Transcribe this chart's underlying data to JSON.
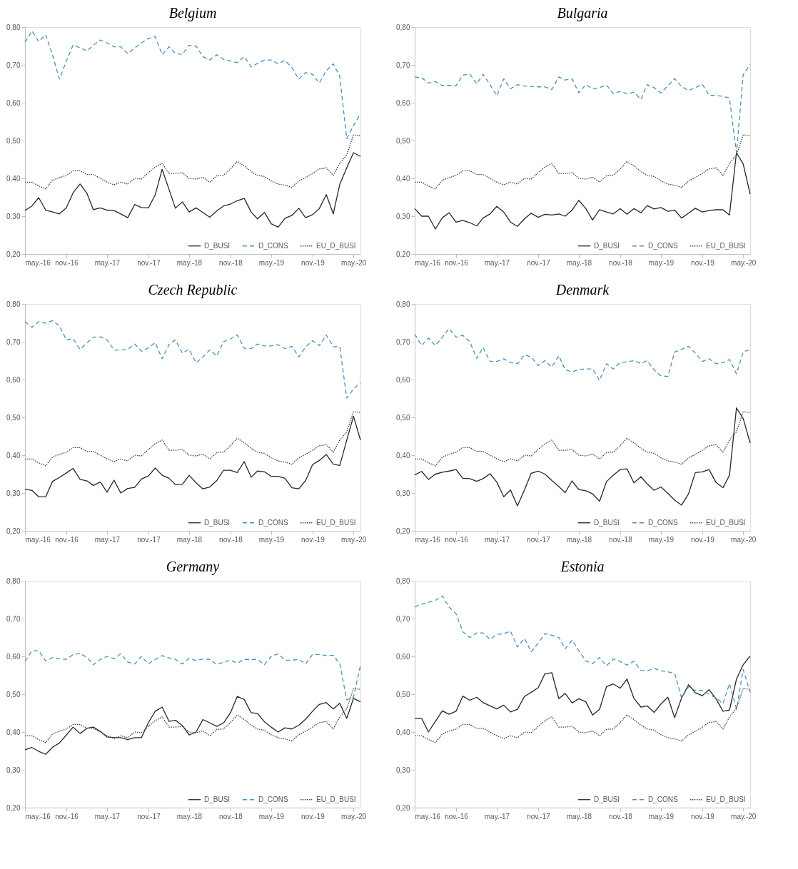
{
  "chart_data": [
    {
      "type": "line",
      "title": "Belgium",
      "x": [
        "2016-05",
        "2016-06",
        "2016-07",
        "2016-08",
        "2016-09",
        "2016-10",
        "2016-11",
        "2016-12",
        "2017-01",
        "2017-02",
        "2017-03",
        "2017-04",
        "2017-05",
        "2017-06",
        "2017-07",
        "2017-08",
        "2017-09",
        "2017-10",
        "2017-11",
        "2017-12",
        "2018-01",
        "2018-02",
        "2018-03",
        "2018-04",
        "2018-05",
        "2018-06",
        "2018-07",
        "2018-08",
        "2018-09",
        "2018-10",
        "2018-11",
        "2018-12",
        "2019-01",
        "2019-02",
        "2019-03",
        "2019-04",
        "2019-05",
        "2019-06",
        "2019-07",
        "2019-08",
        "2019-09",
        "2019-10",
        "2019-11",
        "2019-12",
        "2020-01",
        "2020-02",
        "2020-03",
        "2020-04",
        "2020-05",
        "2020-06"
      ],
      "xlim": [
        "2016-05",
        "2020-06"
      ],
      "xticks": [
        {
          "value": "2016-05",
          "label": "may.-16"
        },
        {
          "value": "2016-11",
          "label": "nov.-16"
        },
        {
          "value": "2017-05",
          "label": "may.-17"
        },
        {
          "value": "2017-11",
          "label": "nov.-17"
        },
        {
          "value": "2018-05",
          "label": "may.-18"
        },
        {
          "value": "2018-11",
          "label": "nov.-18"
        },
        {
          "value": "2019-05",
          "label": "may.-19"
        },
        {
          "value": "2019-11",
          "label": "nov.-19"
        },
        {
          "value": "2020-05",
          "label": "may.-20"
        }
      ],
      "ylim": [
        0.2,
        0.8
      ],
      "yticks": [
        {
          "value": 0.2,
          "label": "0,20"
        },
        {
          "value": 0.3,
          "label": "0,30"
        },
        {
          "value": 0.4,
          "label": "0,40"
        },
        {
          "value": 0.5,
          "label": "0,50"
        },
        {
          "value": 0.6,
          "label": "0,60"
        },
        {
          "value": 0.7,
          "label": "0,70"
        },
        {
          "value": 0.8,
          "label": "0,80"
        }
      ],
      "legend": "bottom right",
      "grid": false,
      "series": [
        {
          "name": "D_BUSI",
          "color": "#262626",
          "line_style": "solid",
          "values": [
            0.315,
            0.327,
            0.349,
            0.316,
            0.311,
            0.306,
            0.322,
            0.362,
            0.385,
            0.36,
            0.317,
            0.322,
            0.316,
            0.315,
            0.306,
            0.296,
            0.331,
            0.323,
            0.322,
            0.356,
            0.424,
            0.37,
            0.321,
            0.338,
            0.311,
            0.322,
            0.31,
            0.297,
            0.314,
            0.327,
            0.332,
            0.341,
            0.347,
            0.311,
            0.293,
            0.31,
            0.28,
            0.271,
            0.294,
            0.302,
            0.321,
            0.296,
            0.304,
            0.32,
            0.357,
            0.306,
            0.384,
            0.428,
            0.468,
            0.458
          ]
        },
        {
          "name": "D_CONS",
          "color": "#4a90bf",
          "line_style": "dashed",
          "values": [
            0.76,
            0.79,
            0.762,
            0.78,
            0.725,
            0.663,
            0.71,
            0.753,
            0.745,
            0.737,
            0.752,
            0.766,
            0.758,
            0.748,
            0.748,
            0.73,
            0.745,
            0.758,
            0.77,
            0.775,
            0.727,
            0.748,
            0.73,
            0.728,
            0.752,
            0.75,
            0.722,
            0.713,
            0.727,
            0.715,
            0.71,
            0.706,
            0.722,
            0.695,
            0.704,
            0.713,
            0.713,
            0.703,
            0.712,
            0.693,
            0.662,
            0.68,
            0.675,
            0.652,
            0.685,
            0.703,
            0.67,
            0.505,
            0.54,
            0.57
          ]
        },
        {
          "name": "EU_D_BUSI",
          "color": "#404040",
          "line_style": "dotted",
          "values": [
            0.39,
            0.39,
            0.38,
            0.372,
            0.395,
            0.402,
            0.408,
            0.42,
            0.42,
            0.41,
            0.41,
            0.4,
            0.39,
            0.383,
            0.39,
            0.385,
            0.4,
            0.398,
            0.415,
            0.43,
            0.44,
            0.413,
            0.413,
            0.415,
            0.4,
            0.398,
            0.403,
            0.39,
            0.407,
            0.408,
            0.425,
            0.445,
            0.433,
            0.418,
            0.408,
            0.405,
            0.393,
            0.385,
            0.382,
            0.376,
            0.393,
            0.402,
            0.413,
            0.425,
            0.428,
            0.408,
            0.44,
            0.462,
            0.515,
            0.513
          ]
        }
      ]
    },
    {
      "type": "line",
      "title": "Bulgaria",
      "x": [
        "2016-05",
        "2016-06",
        "2016-07",
        "2016-08",
        "2016-09",
        "2016-10",
        "2016-11",
        "2016-12",
        "2017-01",
        "2017-02",
        "2017-03",
        "2017-04",
        "2017-05",
        "2017-06",
        "2017-07",
        "2017-08",
        "2017-09",
        "2017-10",
        "2017-11",
        "2017-12",
        "2018-01",
        "2018-02",
        "2018-03",
        "2018-04",
        "2018-05",
        "2018-06",
        "2018-07",
        "2018-08",
        "2018-09",
        "2018-10",
        "2018-11",
        "2018-12",
        "2019-01",
        "2019-02",
        "2019-03",
        "2019-04",
        "2019-05",
        "2019-06",
        "2019-07",
        "2019-08",
        "2019-09",
        "2019-10",
        "2019-11",
        "2019-12",
        "2020-01",
        "2020-02",
        "2020-03",
        "2020-04",
        "2020-05",
        "2020-06"
      ],
      "xlim": [
        "2016-05",
        "2020-06"
      ],
      "xticks": [
        {
          "value": "2016-05",
          "label": "may.-16"
        },
        {
          "value": "2016-11",
          "label": "nov.-16"
        },
        {
          "value": "2017-05",
          "label": "may.-17"
        },
        {
          "value": "2017-11",
          "label": "nov.-17"
        },
        {
          "value": "2018-05",
          "label": "may.-18"
        },
        {
          "value": "2018-11",
          "label": "nov.-18"
        },
        {
          "value": "2019-05",
          "label": "may.-19"
        },
        {
          "value": "2019-11",
          "label": "nov.-19"
        },
        {
          "value": "2020-05",
          "label": "may.-20"
        }
      ],
      "ylim": [
        0.2,
        0.8
      ],
      "yticks": [
        {
          "value": 0.2,
          "label": "0,20"
        },
        {
          "value": 0.3,
          "label": "0,30"
        },
        {
          "value": 0.4,
          "label": "0,40"
        },
        {
          "value": 0.5,
          "label": "0,50"
        },
        {
          "value": 0.6,
          "label": "0,60"
        },
        {
          "value": 0.7,
          "label": "0,70"
        },
        {
          "value": 0.8,
          "label": "0,80"
        }
      ],
      "legend": "bottom right",
      "grid": false,
      "series": [
        {
          "name": "D_BUSI",
          "color": "#262626",
          "line_style": "solid",
          "values": [
            0.32,
            0.3,
            0.3,
            0.266,
            0.296,
            0.309,
            0.284,
            0.289,
            0.283,
            0.274,
            0.295,
            0.306,
            0.326,
            0.311,
            0.284,
            0.273,
            0.293,
            0.308,
            0.297,
            0.305,
            0.303,
            0.306,
            0.3,
            0.316,
            0.342,
            0.32,
            0.29,
            0.317,
            0.311,
            0.306,
            0.32,
            0.305,
            0.32,
            0.309,
            0.328,
            0.319,
            0.323,
            0.313,
            0.316,
            0.295,
            0.308,
            0.321,
            0.311,
            0.315,
            0.317,
            0.317,
            0.303,
            0.468,
            0.438,
            0.358
          ]
        },
        {
          "name": "D_CONS",
          "color": "#4a90bf",
          "line_style": "dashed",
          "values": [
            0.668,
            0.666,
            0.652,
            0.656,
            0.645,
            0.646,
            0.645,
            0.673,
            0.676,
            0.65,
            0.675,
            0.648,
            0.618,
            0.663,
            0.637,
            0.648,
            0.644,
            0.643,
            0.642,
            0.642,
            0.635,
            0.668,
            0.66,
            0.663,
            0.626,
            0.648,
            0.637,
            0.64,
            0.647,
            0.624,
            0.63,
            0.624,
            0.628,
            0.609,
            0.648,
            0.64,
            0.626,
            0.645,
            0.664,
            0.643,
            0.632,
            0.64,
            0.649,
            0.62,
            0.619,
            0.617,
            0.612,
            0.468,
            0.674,
            0.701
          ]
        },
        {
          "name": "EU_D_BUSI",
          "color": "#404040",
          "line_style": "dotted",
          "values": [
            0.39,
            0.39,
            0.38,
            0.372,
            0.395,
            0.402,
            0.408,
            0.42,
            0.42,
            0.41,
            0.41,
            0.4,
            0.39,
            0.383,
            0.39,
            0.385,
            0.4,
            0.398,
            0.415,
            0.43,
            0.44,
            0.413,
            0.413,
            0.415,
            0.4,
            0.398,
            0.403,
            0.39,
            0.407,
            0.408,
            0.425,
            0.445,
            0.433,
            0.418,
            0.408,
            0.405,
            0.393,
            0.385,
            0.382,
            0.376,
            0.393,
            0.402,
            0.413,
            0.425,
            0.428,
            0.408,
            0.44,
            0.462,
            0.515,
            0.513
          ]
        }
      ]
    },
    {
      "type": "line",
      "title": "Czech Republic",
      "x": [
        "2016-05",
        "2016-06",
        "2016-07",
        "2016-08",
        "2016-09",
        "2016-10",
        "2016-11",
        "2016-12",
        "2017-01",
        "2017-02",
        "2017-03",
        "2017-04",
        "2017-05",
        "2017-06",
        "2017-07",
        "2017-08",
        "2017-09",
        "2017-10",
        "2017-11",
        "2017-12",
        "2018-01",
        "2018-02",
        "2018-03",
        "2018-04",
        "2018-05",
        "2018-06",
        "2018-07",
        "2018-08",
        "2018-09",
        "2018-10",
        "2018-11",
        "2018-12",
        "2019-01",
        "2019-02",
        "2019-03",
        "2019-04",
        "2019-05",
        "2019-06",
        "2019-07",
        "2019-08",
        "2019-09",
        "2019-10",
        "2019-11",
        "2019-12",
        "2020-01",
        "2020-02",
        "2020-03",
        "2020-04",
        "2020-05",
        "2020-06"
      ],
      "xlim": [
        "2016-05",
        "2020-06"
      ],
      "xticks": [
        {
          "value": "2016-05",
          "label": "may.-16"
        },
        {
          "value": "2016-11",
          "label": "nov.-16"
        },
        {
          "value": "2017-05",
          "label": "may.-17"
        },
        {
          "value": "2017-11",
          "label": "nov.-17"
        },
        {
          "value": "2018-05",
          "label": "may.-18"
        },
        {
          "value": "2018-11",
          "label": "nov.-18"
        },
        {
          "value": "2019-05",
          "label": "may.-19"
        },
        {
          "value": "2019-11",
          "label": "nov.-19"
        },
        {
          "value": "2020-05",
          "label": "may.-20"
        }
      ],
      "ylim": [
        0.2,
        0.8
      ],
      "yticks": [
        {
          "value": 0.2,
          "label": "0,20"
        },
        {
          "value": 0.3,
          "label": "0,30"
        },
        {
          "value": 0.4,
          "label": "0,40"
        },
        {
          "value": 0.5,
          "label": "0,50"
        },
        {
          "value": 0.6,
          "label": "0,60"
        },
        {
          "value": 0.7,
          "label": "0,70"
        },
        {
          "value": 0.8,
          "label": "0,80"
        }
      ],
      "legend": "bottom right",
      "grid": false,
      "series": [
        {
          "name": "D_BUSI",
          "color": "#262626",
          "line_style": "solid",
          "values": [
            0.31,
            0.307,
            0.29,
            0.29,
            0.331,
            0.341,
            0.353,
            0.365,
            0.336,
            0.332,
            0.32,
            0.329,
            0.302,
            0.334,
            0.3,
            0.312,
            0.315,
            0.337,
            0.345,
            0.366,
            0.347,
            0.339,
            0.322,
            0.323,
            0.347,
            0.327,
            0.311,
            0.316,
            0.333,
            0.36,
            0.36,
            0.354,
            0.383,
            0.342,
            0.358,
            0.356,
            0.344,
            0.344,
            0.339,
            0.314,
            0.311,
            0.333,
            0.375,
            0.386,
            0.402,
            0.376,
            0.373,
            0.44,
            0.503,
            0.44
          ]
        },
        {
          "name": "D_CONS",
          "color": "#4a90bf",
          "line_style": "dashed",
          "values": [
            0.753,
            0.738,
            0.753,
            0.749,
            0.756,
            0.742,
            0.705,
            0.708,
            0.68,
            0.697,
            0.712,
            0.713,
            0.705,
            0.678,
            0.678,
            0.68,
            0.694,
            0.675,
            0.684,
            0.698,
            0.655,
            0.693,
            0.705,
            0.67,
            0.68,
            0.644,
            0.66,
            0.678,
            0.662,
            0.7,
            0.708,
            0.718,
            0.683,
            0.682,
            0.694,
            0.689,
            0.689,
            0.692,
            0.682,
            0.688,
            0.66,
            0.686,
            0.703,
            0.69,
            0.718,
            0.687,
            0.687,
            0.551,
            0.575,
            0.592
          ]
        },
        {
          "name": "EU_D_BUSI",
          "color": "#404040",
          "line_style": "dotted",
          "values": [
            0.39,
            0.39,
            0.38,
            0.372,
            0.395,
            0.402,
            0.408,
            0.42,
            0.42,
            0.41,
            0.41,
            0.4,
            0.39,
            0.383,
            0.39,
            0.385,
            0.4,
            0.398,
            0.415,
            0.43,
            0.44,
            0.413,
            0.413,
            0.415,
            0.4,
            0.398,
            0.403,
            0.39,
            0.407,
            0.408,
            0.425,
            0.445,
            0.433,
            0.418,
            0.408,
            0.405,
            0.393,
            0.385,
            0.382,
            0.376,
            0.393,
            0.402,
            0.413,
            0.425,
            0.428,
            0.408,
            0.44,
            0.462,
            0.515,
            0.513
          ]
        }
      ]
    },
    {
      "type": "line",
      "title": "Denmark",
      "x": [
        "2016-05",
        "2016-06",
        "2016-07",
        "2016-08",
        "2016-09",
        "2016-10",
        "2016-11",
        "2016-12",
        "2017-01",
        "2017-02",
        "2017-03",
        "2017-04",
        "2017-05",
        "2017-06",
        "2017-07",
        "2017-08",
        "2017-09",
        "2017-10",
        "2017-11",
        "2017-12",
        "2018-01",
        "2018-02",
        "2018-03",
        "2018-04",
        "2018-05",
        "2018-06",
        "2018-07",
        "2018-08",
        "2018-09",
        "2018-10",
        "2018-11",
        "2018-12",
        "2019-01",
        "2019-02",
        "2019-03",
        "2019-04",
        "2019-05",
        "2019-06",
        "2019-07",
        "2019-08",
        "2019-09",
        "2019-10",
        "2019-11",
        "2019-12",
        "2020-01",
        "2020-02",
        "2020-03",
        "2020-04",
        "2020-05",
        "2020-06"
      ],
      "xlim": [
        "2016-05",
        "2020-06"
      ],
      "xticks": [
        {
          "value": "2016-05",
          "label": "may.-16"
        },
        {
          "value": "2016-11",
          "label": "nov.-16"
        },
        {
          "value": "2017-05",
          "label": "may.-17"
        },
        {
          "value": "2017-11",
          "label": "nov.-17"
        },
        {
          "value": "2018-05",
          "label": "may.-18"
        },
        {
          "value": "2018-11",
          "label": "nov.-18"
        },
        {
          "value": "2019-05",
          "label": "may.-19"
        },
        {
          "value": "2019-11",
          "label": "nov.-19"
        },
        {
          "value": "2020-05",
          "label": "may.-20"
        }
      ],
      "ylim": [
        0.2,
        0.8
      ],
      "yticks": [
        {
          "value": 0.2,
          "label": "0,20"
        },
        {
          "value": 0.3,
          "label": "0,30"
        },
        {
          "value": 0.4,
          "label": "0,40"
        },
        {
          "value": 0.5,
          "label": "0,50"
        },
        {
          "value": 0.6,
          "label": "0,60"
        },
        {
          "value": 0.7,
          "label": "0,70"
        },
        {
          "value": 0.8,
          "label": "0,80"
        }
      ],
      "legend": "bottom right",
      "grid": false,
      "series": [
        {
          "name": "D_BUSI",
          "color": "#262626",
          "line_style": "solid",
          "values": [
            0.348,
            0.357,
            0.336,
            0.35,
            0.355,
            0.358,
            0.362,
            0.339,
            0.338,
            0.331,
            0.338,
            0.351,
            0.329,
            0.29,
            0.308,
            0.266,
            0.308,
            0.352,
            0.358,
            0.35,
            0.333,
            0.317,
            0.301,
            0.332,
            0.309,
            0.306,
            0.298,
            0.278,
            0.33,
            0.347,
            0.362,
            0.364,
            0.327,
            0.343,
            0.324,
            0.307,
            0.316,
            0.299,
            0.281,
            0.268,
            0.298,
            0.354,
            0.356,
            0.362,
            0.328,
            0.314,
            0.347,
            0.525,
            0.497,
            0.432
          ]
        },
        {
          "name": "D_CONS",
          "color": "#4a90bf",
          "line_style": "dashed",
          "values": [
            0.72,
            0.69,
            0.71,
            0.69,
            0.712,
            0.735,
            0.712,
            0.717,
            0.7,
            0.656,
            0.685,
            0.648,
            0.648,
            0.655,
            0.645,
            0.642,
            0.665,
            0.66,
            0.637,
            0.65,
            0.633,
            0.663,
            0.626,
            0.62,
            0.627,
            0.628,
            0.628,
            0.598,
            0.642,
            0.628,
            0.645,
            0.647,
            0.65,
            0.643,
            0.65,
            0.625,
            0.61,
            0.608,
            0.673,
            0.68,
            0.688,
            0.67,
            0.648,
            0.655,
            0.642,
            0.645,
            0.653,
            0.615,
            0.673,
            0.68
          ]
        },
        {
          "name": "EU_D_BUSI",
          "color": "#404040",
          "line_style": "dotted",
          "values": [
            0.39,
            0.39,
            0.38,
            0.372,
            0.395,
            0.402,
            0.408,
            0.42,
            0.42,
            0.41,
            0.41,
            0.4,
            0.39,
            0.383,
            0.39,
            0.385,
            0.4,
            0.398,
            0.415,
            0.43,
            0.44,
            0.413,
            0.413,
            0.415,
            0.4,
            0.398,
            0.403,
            0.39,
            0.407,
            0.408,
            0.425,
            0.445,
            0.433,
            0.418,
            0.408,
            0.405,
            0.393,
            0.385,
            0.382,
            0.376,
            0.393,
            0.402,
            0.413,
            0.425,
            0.428,
            0.408,
            0.44,
            0.462,
            0.515,
            0.513
          ]
        }
      ]
    },
    {
      "type": "line",
      "title": "Germany",
      "x": [
        "2016-05",
        "2016-06",
        "2016-07",
        "2016-08",
        "2016-09",
        "2016-10",
        "2016-11",
        "2016-12",
        "2017-01",
        "2017-02",
        "2017-03",
        "2017-04",
        "2017-05",
        "2017-06",
        "2017-07",
        "2017-08",
        "2017-09",
        "2017-10",
        "2017-11",
        "2017-12",
        "2018-01",
        "2018-02",
        "2018-03",
        "2018-04",
        "2018-05",
        "2018-06",
        "2018-07",
        "2018-08",
        "2018-09",
        "2018-10",
        "2018-11",
        "2018-12",
        "2019-01",
        "2019-02",
        "2019-03",
        "2019-04",
        "2019-05",
        "2019-06",
        "2019-07",
        "2019-08",
        "2019-09",
        "2019-10",
        "2019-11",
        "2019-12",
        "2020-01",
        "2020-02",
        "2020-03",
        "2020-04",
        "2020-05",
        "2020-06"
      ],
      "xlim": [
        "2016-05",
        "2020-06"
      ],
      "xticks": [
        {
          "value": "2016-05",
          "label": "may.-16"
        },
        {
          "value": "2016-11",
          "label": "nov.-16"
        },
        {
          "value": "2017-05",
          "label": "may.-17"
        },
        {
          "value": "2017-11",
          "label": "nov.-17"
        },
        {
          "value": "2018-05",
          "label": "may.-18"
        },
        {
          "value": "2018-11",
          "label": "nov.-18"
        },
        {
          "value": "2019-05",
          "label": "may.-19"
        },
        {
          "value": "2019-11",
          "label": "nov.-19"
        },
        {
          "value": "2020-05",
          "label": "may.-20"
        }
      ],
      "ylim": [
        0.2,
        0.8
      ],
      "yticks": [
        {
          "value": 0.2,
          "label": "0,20"
        },
        {
          "value": 0.3,
          "label": "0,30"
        },
        {
          "value": 0.4,
          "label": "0,40"
        },
        {
          "value": 0.5,
          "label": "0,50"
        },
        {
          "value": 0.6,
          "label": "0,60"
        },
        {
          "value": 0.7,
          "label": "0,70"
        },
        {
          "value": 0.8,
          "label": "0,80"
        }
      ],
      "legend": "bottom right",
      "grid": false,
      "series": [
        {
          "name": "D_BUSI",
          "color": "#262626",
          "line_style": "solid",
          "values": [
            0.353,
            0.359,
            0.349,
            0.341,
            0.36,
            0.371,
            0.392,
            0.413,
            0.396,
            0.41,
            0.413,
            0.402,
            0.387,
            0.385,
            0.385,
            0.38,
            0.385,
            0.385,
            0.425,
            0.455,
            0.466,
            0.428,
            0.431,
            0.417,
            0.392,
            0.4,
            0.433,
            0.424,
            0.415,
            0.424,
            0.451,
            0.494,
            0.486,
            0.451,
            0.449,
            0.427,
            0.413,
            0.4,
            0.411,
            0.408,
            0.418,
            0.434,
            0.455,
            0.473,
            0.478,
            0.461,
            0.476,
            0.436,
            0.489,
            0.48
          ]
        },
        {
          "name": "D_CONS",
          "color": "#4a90bf",
          "line_style": "dashed",
          "values": [
            0.587,
            0.615,
            0.615,
            0.588,
            0.597,
            0.594,
            0.592,
            0.605,
            0.608,
            0.597,
            0.578,
            0.592,
            0.6,
            0.594,
            0.607,
            0.585,
            0.58,
            0.6,
            0.58,
            0.592,
            0.602,
            0.596,
            0.592,
            0.58,
            0.595,
            0.589,
            0.593,
            0.592,
            0.578,
            0.585,
            0.59,
            0.582,
            0.592,
            0.592,
            0.592,
            0.578,
            0.6,
            0.607,
            0.59,
            0.59,
            0.592,
            0.58,
            0.605,
            0.605,
            0.602,
            0.603,
            0.58,
            0.485,
            0.492,
            0.576
          ]
        },
        {
          "name": "EU_D_BUSI",
          "color": "#404040",
          "line_style": "dotted",
          "values": [
            0.39,
            0.39,
            0.38,
            0.372,
            0.395,
            0.402,
            0.408,
            0.42,
            0.42,
            0.41,
            0.41,
            0.4,
            0.39,
            0.383,
            0.39,
            0.385,
            0.4,
            0.398,
            0.415,
            0.43,
            0.44,
            0.413,
            0.413,
            0.415,
            0.4,
            0.398,
            0.403,
            0.39,
            0.407,
            0.408,
            0.425,
            0.445,
            0.433,
            0.418,
            0.408,
            0.405,
            0.393,
            0.385,
            0.382,
            0.376,
            0.393,
            0.402,
            0.413,
            0.425,
            0.428,
            0.408,
            0.44,
            0.462,
            0.515,
            0.513
          ]
        }
      ]
    },
    {
      "type": "line",
      "title": "Estonia",
      "x": [
        "2016-05",
        "2016-06",
        "2016-07",
        "2016-08",
        "2016-09",
        "2016-10",
        "2016-11",
        "2016-12",
        "2017-01",
        "2017-02",
        "2017-03",
        "2017-04",
        "2017-05",
        "2017-06",
        "2017-07",
        "2017-08",
        "2017-09",
        "2017-10",
        "2017-11",
        "2017-12",
        "2018-01",
        "2018-02",
        "2018-03",
        "2018-04",
        "2018-05",
        "2018-06",
        "2018-07",
        "2018-08",
        "2018-09",
        "2018-10",
        "2018-11",
        "2018-12",
        "2019-01",
        "2019-02",
        "2019-03",
        "2019-04",
        "2019-05",
        "2019-06",
        "2019-07",
        "2019-08",
        "2019-09",
        "2019-10",
        "2019-11",
        "2019-12",
        "2020-01",
        "2020-02",
        "2020-03",
        "2020-04",
        "2020-05",
        "2020-06"
      ],
      "xlim": [
        "2016-05",
        "2020-06"
      ],
      "xticks": [
        {
          "value": "2016-05",
          "label": "may.-16"
        },
        {
          "value": "2016-11",
          "label": "nov.-16"
        },
        {
          "value": "2017-05",
          "label": "may.-17"
        },
        {
          "value": "2017-11",
          "label": "nov.-17"
        },
        {
          "value": "2018-05",
          "label": "may.-18"
        },
        {
          "value": "2018-11",
          "label": "nov.-18"
        },
        {
          "value": "2019-05",
          "label": "may.-19"
        },
        {
          "value": "2019-11",
          "label": "nov.-19"
        },
        {
          "value": "2020-05",
          "label": "may.-20"
        }
      ],
      "ylim": [
        0.2,
        0.8
      ],
      "yticks": [
        {
          "value": 0.2,
          "label": "0,20"
        },
        {
          "value": 0.3,
          "label": "0,30"
        },
        {
          "value": 0.4,
          "label": "0,40"
        },
        {
          "value": 0.5,
          "label": "0,50"
        },
        {
          "value": 0.6,
          "label": "0,60"
        },
        {
          "value": 0.7,
          "label": "0,70"
        },
        {
          "value": 0.8,
          "label": "0,80"
        }
      ],
      "legend": "bottom right",
      "grid": false,
      "series": [
        {
          "name": "D_BUSI",
          "color": "#262626",
          "line_style": "solid",
          "values": [
            0.436,
            0.436,
            0.4,
            0.428,
            0.456,
            0.447,
            0.455,
            0.495,
            0.484,
            0.492,
            0.478,
            0.469,
            0.461,
            0.471,
            0.453,
            0.46,
            0.494,
            0.505,
            0.517,
            0.554,
            0.557,
            0.488,
            0.502,
            0.477,
            0.488,
            0.48,
            0.445,
            0.46,
            0.52,
            0.527,
            0.516,
            0.54,
            0.489,
            0.466,
            0.469,
            0.452,
            0.474,
            0.492,
            0.438,
            0.49,
            0.525,
            0.504,
            0.496,
            0.512,
            0.488,
            0.455,
            0.458,
            0.54,
            0.578,
            0.601
          ]
        },
        {
          "name": "D_CONS",
          "color": "#4a90bf",
          "line_style": "dashed",
          "values": [
            0.731,
            0.738,
            0.743,
            0.748,
            0.76,
            0.73,
            0.713,
            0.665,
            0.65,
            0.662,
            0.662,
            0.645,
            0.658,
            0.66,
            0.667,
            0.625,
            0.648,
            0.612,
            0.635,
            0.66,
            0.656,
            0.65,
            0.62,
            0.643,
            0.615,
            0.588,
            0.581,
            0.597,
            0.575,
            0.593,
            0.587,
            0.577,
            0.587,
            0.563,
            0.562,
            0.568,
            0.562,
            0.559,
            0.555,
            0.49,
            0.52,
            0.51,
            0.51,
            0.5,
            0.49,
            0.475,
            0.528,
            0.461,
            0.565,
            0.505
          ]
        },
        {
          "name": "EU_D_BUSI",
          "color": "#404040",
          "line_style": "dotted",
          "values": [
            0.39,
            0.39,
            0.38,
            0.372,
            0.395,
            0.402,
            0.408,
            0.42,
            0.42,
            0.41,
            0.41,
            0.4,
            0.39,
            0.383,
            0.39,
            0.385,
            0.4,
            0.398,
            0.415,
            0.43,
            0.44,
            0.413,
            0.413,
            0.415,
            0.4,
            0.398,
            0.403,
            0.39,
            0.407,
            0.408,
            0.425,
            0.445,
            0.433,
            0.418,
            0.408,
            0.405,
            0.393,
            0.385,
            0.382,
            0.376,
            0.393,
            0.402,
            0.413,
            0.425,
            0.428,
            0.408,
            0.44,
            0.462,
            0.515,
            0.513
          ]
        }
      ]
    }
  ]
}
